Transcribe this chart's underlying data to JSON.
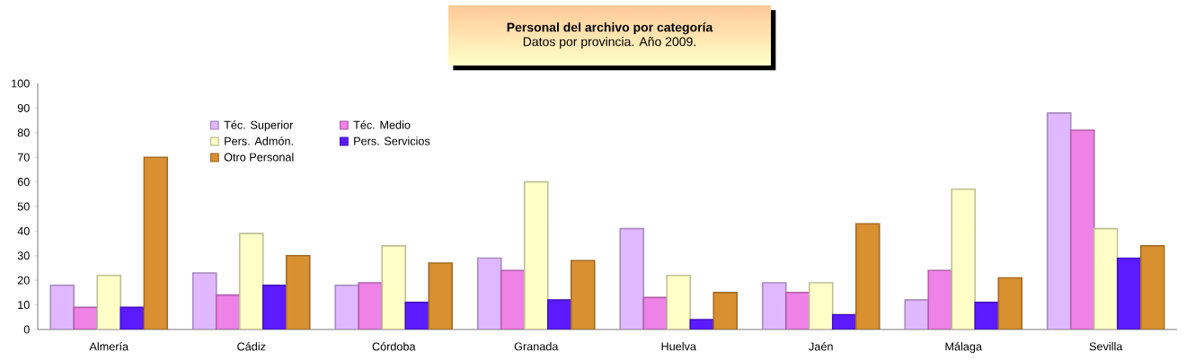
{
  "chart_data": {
    "type": "bar",
    "title": "Personal del archivo por categoría",
    "subtitle": "Datos por provincia. Año 2009.",
    "categories": [
      "Almería",
      "Cádiz",
      "Córdoba",
      "Granada",
      "Huelva",
      "Jaén",
      "Málaga",
      "Sevilla"
    ],
    "series": [
      {
        "name": "Téc. Superior",
        "color": "#e0b8ff",
        "values": [
          18,
          23,
          18,
          29,
          41,
          19,
          12,
          88
        ]
      },
      {
        "name": "Téc. Medio",
        "color": "#ee82e6",
        "values": [
          9,
          14,
          19,
          24,
          13,
          15,
          24,
          81
        ]
      },
      {
        "name": "Pers. Admón.",
        "color": "#ffffc8",
        "values": [
          22,
          39,
          34,
          60,
          22,
          19,
          57,
          41
        ]
      },
      {
        "name": "Pers. Servicios",
        "color": "#5b1aff",
        "values": [
          9,
          18,
          11,
          12,
          4,
          6,
          11,
          29
        ]
      },
      {
        "name": "Otro Personal",
        "color": "#d99030",
        "values": [
          70,
          30,
          27,
          28,
          15,
          43,
          21,
          34
        ]
      }
    ],
    "ylim": [
      0,
      100
    ],
    "yticks": [
      0,
      10,
      20,
      30,
      40,
      50,
      60,
      70,
      80,
      90,
      100
    ],
    "grid": false,
    "legend": "top left"
  }
}
